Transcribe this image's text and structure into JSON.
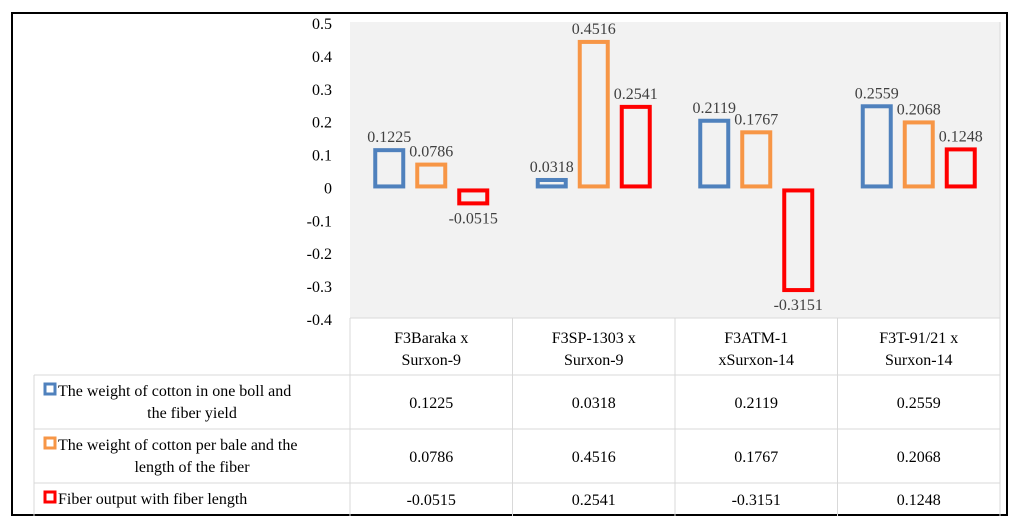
{
  "chart_data": {
    "type": "bar",
    "title": "",
    "xlabel": "",
    "ylabel": "",
    "ylim": [
      -0.4,
      0.5
    ],
    "yticks": [
      "0.5",
      "0.4",
      "0.3",
      "0.2",
      "0.1",
      "0",
      "-0.1",
      "-0.2",
      "-0.3",
      "-0.4"
    ],
    "ytick_values": [
      0.5,
      0.4,
      0.3,
      0.2,
      0.1,
      0,
      -0.1,
      -0.2,
      -0.3,
      -0.4
    ],
    "grid": false,
    "legend_placement": "data-table-bottom",
    "bar_style": "outline",
    "categories": [
      [
        "F3Baraka x",
        "Surxon-9"
      ],
      [
        "F3SP-1303 x",
        "Surxon-9"
      ],
      [
        "F3ATM-1",
        "xSurxon-14"
      ],
      [
        "F3T-91/21 x",
        "Surxon-14"
      ]
    ],
    "series": [
      {
        "name": [
          "The weight of cotton in one boll and",
          "the fiber yield"
        ],
        "color": "#4f81bd",
        "values": [
          0.1225,
          0.0318,
          0.2119,
          0.2559
        ],
        "labels": [
          "0.1225",
          "0.0318",
          "0.2119",
          "0.2559"
        ]
      },
      {
        "name": [
          "The weight of cotton per bale and the",
          "length of the fiber"
        ],
        "color": "#f79646",
        "values": [
          0.0786,
          0.4516,
          0.1767,
          0.2068
        ],
        "labels": [
          "0.0786",
          "0.4516",
          "0.1767",
          "0.2068"
        ]
      },
      {
        "name": [
          "Fiber output with fiber length"
        ],
        "color": "#ff0000",
        "values": [
          -0.0515,
          0.2541,
          -0.3151,
          0.1248
        ],
        "labels": [
          "-0.0515",
          "0.2541",
          "-0.3151",
          "0.1248"
        ]
      }
    ]
  },
  "colors": {
    "plot_background": "#f2f2f2",
    "table_lines": "#d9d9d9",
    "frame": "#000000",
    "data_label": "#404040"
  }
}
